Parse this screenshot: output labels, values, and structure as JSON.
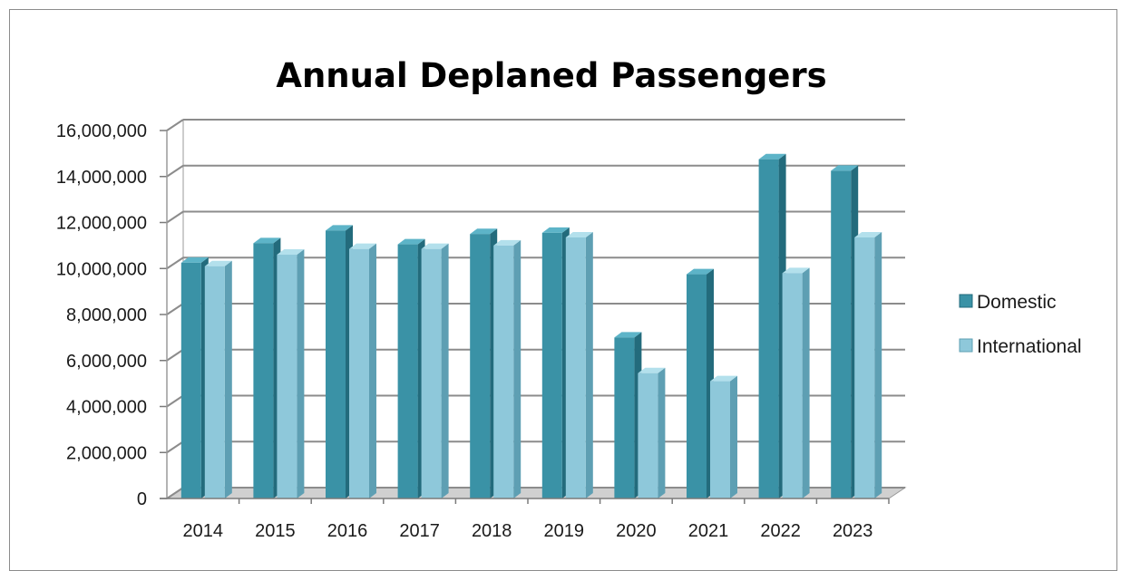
{
  "chart_data": {
    "type": "bar",
    "title": "Annual Deplaned Passengers",
    "xlabel": "",
    "ylabel": "",
    "categories": [
      "2014",
      "2015",
      "2016",
      "2017",
      "2018",
      "2019",
      "2020",
      "2021",
      "2022",
      "2023"
    ],
    "series": [
      {
        "name": "Domestic",
        "values": [
          10250000,
          11100000,
          11650000,
          11050000,
          11500000,
          11550000,
          7000000,
          9750000,
          14750000,
          14250000
        ]
      },
      {
        "name": "International",
        "values": [
          10100000,
          10600000,
          10850000,
          10850000,
          11000000,
          11350000,
          5450000,
          5100000,
          9800000,
          11350000
        ]
      }
    ],
    "ylim": [
      0,
      16000000
    ],
    "yticks": [
      0,
      2000000,
      4000000,
      6000000,
      8000000,
      10000000,
      12000000,
      14000000,
      16000000
    ],
    "ytick_labels": [
      "0",
      "2,000,000",
      "4,000,000",
      "6,000,000",
      "8,000,000",
      "10,000,000",
      "12,000,000",
      "14,000,000",
      "16,000,000"
    ],
    "grid": true,
    "legend_position": "right",
    "style": "3d-clustered-column",
    "colors": {
      "Domestic": "#3a92a6",
      "International": "#8ec8da",
      "grid": "#8c8c8c",
      "floor": "#d0d0d0"
    }
  }
}
